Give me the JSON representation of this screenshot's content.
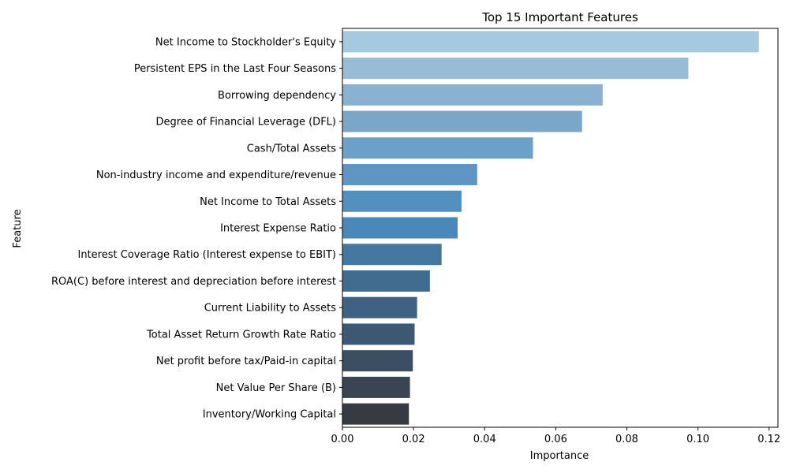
{
  "chart_data": {
    "type": "bar",
    "orientation": "horizontal",
    "title": "Top 15 Important Features",
    "xlabel": "Importance",
    "ylabel": "Feature",
    "xlim": [
      0,
      0.1225
    ],
    "xticks": [
      "0.00",
      "0.02",
      "0.04",
      "0.06",
      "0.08",
      "0.10",
      "0.12"
    ],
    "grid": false,
    "categories": [
      "Net Income to Stockholder's Equity",
      "Persistent EPS in the Last Four Seasons",
      "Borrowing dependency",
      "Degree of Financial Leverage (DFL)",
      "Cash/Total Assets",
      "Non-industry income and expenditure/revenue",
      "Net Income to Total Assets",
      "Interest Expense Ratio",
      "Interest Coverage Ratio (Interest expense to EBIT)",
      "ROA(C) before interest and depreciation before interest",
      "Current Liability to Assets",
      "Total Asset Return Growth Rate Ratio",
      "Net profit before tax/Paid-in capital",
      "Net Value Per Share (B)",
      "Inventory/Working Capital"
    ],
    "values": [
      0.1171,
      0.0973,
      0.0732,
      0.0674,
      0.0536,
      0.0379,
      0.0335,
      0.0324,
      0.0279,
      0.0246,
      0.021,
      0.0203,
      0.0198,
      0.019,
      0.0187
    ],
    "colors": [
      "#a5c9de",
      "#98bbd6",
      "#8ab1cf",
      "#7ca6c8",
      "#6da0c7",
      "#5e95c2",
      "#5490bf",
      "#4a87bb",
      "#4578a0",
      "#416c90",
      "#3f6282",
      "#3d5872",
      "#3c4e62",
      "#3a4452",
      "#363a41"
    ]
  }
}
